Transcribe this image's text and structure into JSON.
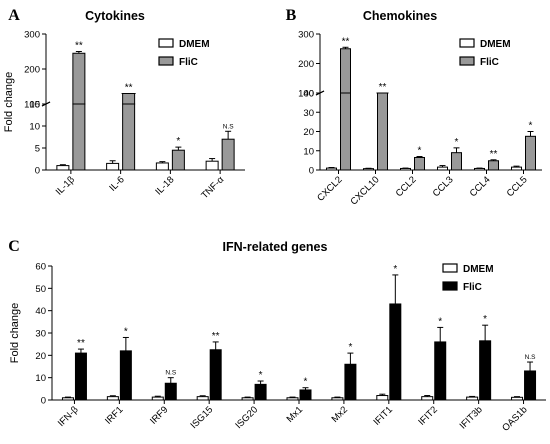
{
  "chart_data": [
    {
      "type": "bar",
      "panel_label": "A",
      "title": "Cytokines",
      "ylabel": "Fold change",
      "xlabel": "",
      "broken_axis": true,
      "upper_segment": {
        "ylim": [
          100,
          300
        ],
        "yticks": [
          100,
          200,
          300
        ]
      },
      "lower_segment": {
        "ylim": [
          0,
          15
        ],
        "yticks": [
          0,
          5,
          10,
          15
        ]
      },
      "categories": [
        "IL-1β",
        "IL-6",
        "IL-18",
        "TNF-α"
      ],
      "series": [
        {
          "name": "DMEM",
          "color": "#ffffff",
          "values": [
            1.0,
            1.5,
            1.6,
            2.0
          ],
          "errors": [
            0.2,
            0.6,
            0.3,
            0.6
          ]
        },
        {
          "name": "FliC",
          "color": "#999999",
          "values": [
            245,
            130,
            4.5,
            7.0
          ],
          "errors": [
            5,
            0,
            0.7,
            1.8
          ]
        }
      ],
      "significance": [
        "**",
        "**",
        "*",
        "N.S"
      ],
      "legend_placement": "top-right"
    },
    {
      "type": "bar",
      "panel_label": "B",
      "title": "Chemokines",
      "ylabel": "",
      "xlabel": "",
      "broken_axis": true,
      "upper_segment": {
        "ylim": [
          100,
          300
        ],
        "yticks": [
          100,
          200,
          300
        ]
      },
      "lower_segment": {
        "ylim": [
          0,
          40
        ],
        "yticks": [
          0,
          10,
          20,
          30,
          40
        ]
      },
      "categories": [
        "CXCL2",
        "CXCL10",
        "CCL2",
        "CCL3",
        "CCL4",
        "CCL5"
      ],
      "series": [
        {
          "name": "DMEM",
          "color": "#ffffff",
          "values": [
            1.0,
            0.7,
            0.8,
            1.5,
            0.8,
            1.5
          ],
          "errors": [
            0.3,
            0.2,
            0.2,
            0.8,
            0.2,
            0.5
          ]
        },
        {
          "name": "FliC",
          "color": "#999999",
          "values": [
            250,
            85,
            6.5,
            9.0,
            4.8,
            17.5
          ],
          "errors": [
            5,
            0,
            0.5,
            2.5,
            0.5,
            2.5
          ]
        }
      ],
      "significance": [
        "**",
        "**",
        "*",
        "*",
        "**",
        "*"
      ],
      "legend_placement": "top-right"
    },
    {
      "type": "bar",
      "panel_label": "C",
      "title": "IFN-related genes",
      "ylabel": "Fold change",
      "xlabel": "",
      "ylim": [
        0,
        60
      ],
      "yticks": [
        0,
        10,
        20,
        30,
        40,
        50,
        60
      ],
      "categories": [
        "IFN-β",
        "IRF1",
        "IRF9",
        "ISG15",
        "ISG20",
        "Mx1",
        "Mx2",
        "IFIT1",
        "IFIT2",
        "IFIT3b",
        "OAS1b"
      ],
      "series": [
        {
          "name": "DMEM",
          "color": "#ffffff",
          "values": [
            1.0,
            1.5,
            1.3,
            1.5,
            1.0,
            1.0,
            1.0,
            2.0,
            1.5,
            1.3,
            1.2
          ],
          "errors": [
            0.3,
            0.4,
            0.4,
            0.4,
            0.3,
            0.3,
            0.3,
            0.6,
            0.5,
            0.3,
            0.3
          ]
        },
        {
          "name": "FliC",
          "color": "#000000",
          "values": [
            21.0,
            22.0,
            7.5,
            22.5,
            7.0,
            4.5,
            16.0,
            43.0,
            26.0,
            26.5,
            13.0
          ],
          "errors": [
            1.8,
            6.0,
            2.5,
            3.5,
            1.5,
            1.0,
            5.0,
            13.0,
            6.5,
            7.0,
            4.0
          ]
        }
      ],
      "significance": [
        "**",
        "*",
        "N.S",
        "**",
        "*",
        "*",
        "*",
        "*",
        "*",
        "*",
        "N.S"
      ],
      "legend_placement": "top-right"
    }
  ]
}
